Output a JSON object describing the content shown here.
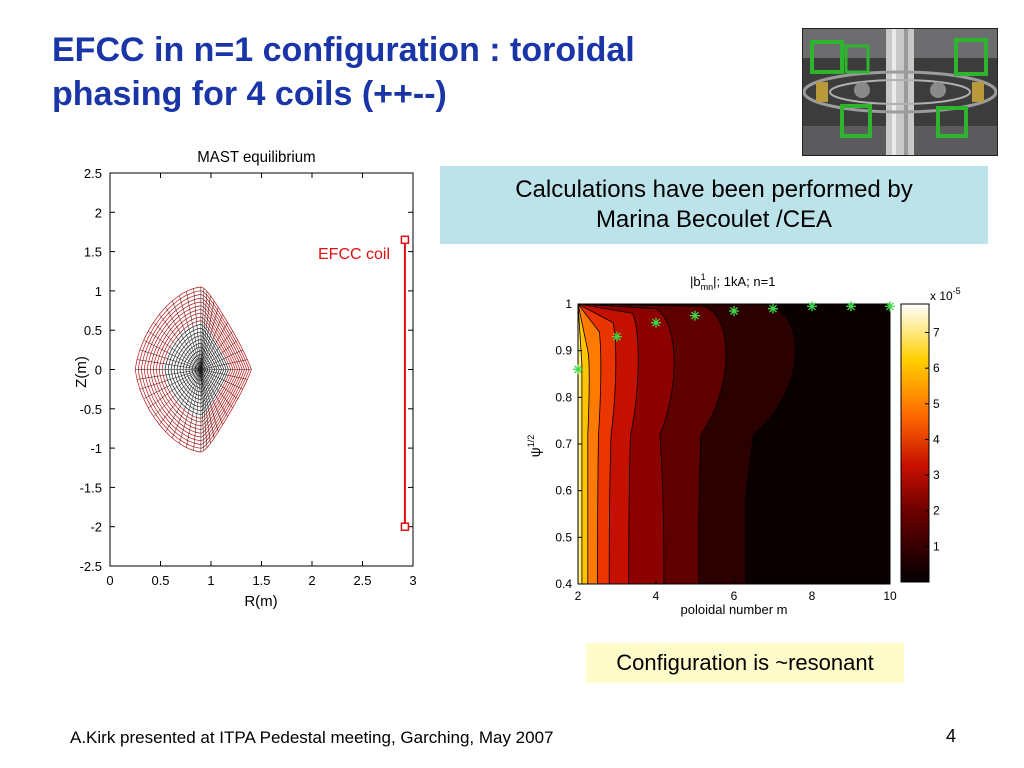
{
  "slide": {
    "title_line1": "EFCC in n=1 configuration : toroidal",
    "title_line2": "phasing for 4 coils (++--)",
    "callout_line1": "Calculations have been performed by",
    "callout_line2": "Marina Becoulet /CEA",
    "note": "Configuration is ~resonant",
    "footer": "A.Kirk presented at ITPA Pedestal meeting, Garching, May 2007",
    "page_number": "4"
  },
  "colors": {
    "title": "#1a35a8",
    "callout_bg": "#bce3ea",
    "note_bg": "#fffccc",
    "coil": "#e01010"
  },
  "photo": {
    "icon": "tokamak-vessel-photo-icon"
  },
  "chart_data": [
    {
      "type": "line",
      "title": "MAST equilibrium",
      "xlabel": "R(m)",
      "ylabel": "Z(m)",
      "xlim": [
        0,
        3
      ],
      "ylim": [
        -2.5,
        2.5
      ],
      "xticks": [
        "0",
        "0.5",
        "1",
        "1.5",
        "2",
        "2.5",
        "3"
      ],
      "yticks": [
        "2.5",
        "2",
        "1.5",
        "1",
        "0.5",
        "0",
        "-0.5",
        "-1",
        "-1.5",
        "-2",
        "-2.5"
      ],
      "annotation": "EFCC coil",
      "plasma_boundary": {
        "r_inner": 0.25,
        "r_outer": 1.4,
        "z_max": 1.05,
        "z_min": -1.05,
        "r_axis": 0.9
      },
      "efcc_coil": {
        "r": 2.92,
        "z_top": 1.65,
        "z_bottom": -2.0
      }
    },
    {
      "type": "heatmap",
      "title": "|b1mn|; 1kA; n=1",
      "title_base": "|b",
      "title_sup": "1",
      "title_sub": "mn",
      "title_rest": "|; 1kA; n=1",
      "xlabel": "poloidal number m",
      "ylabel": "ψ1/2",
      "ylabel_base": "ψ",
      "ylabel_sup": "1/2",
      "xlim": [
        2,
        10
      ],
      "ylim": [
        0.4,
        1.0
      ],
      "xticks": [
        "2",
        "4",
        "6",
        "8",
        "10"
      ],
      "yticks": [
        "1",
        "0.9",
        "0.8",
        "0.7",
        "0.6",
        "0.5",
        "0.4"
      ],
      "colorbar_label": "x 10",
      "colorbar_exp": "-5",
      "colorbar_ticks": [
        "7",
        "6",
        "5",
        "4",
        "3",
        "2",
        "1"
      ],
      "colorbar_range": [
        0,
        7.8
      ],
      "resonant_points": [
        {
          "m": 2,
          "psi": 0.86
        },
        {
          "m": 3,
          "psi": 0.93
        },
        {
          "m": 4,
          "psi": 0.96
        },
        {
          "m": 5,
          "psi": 0.975
        },
        {
          "m": 6,
          "psi": 0.985
        },
        {
          "m": 7,
          "psi": 0.99
        },
        {
          "m": 8,
          "psi": 0.995
        },
        {
          "m": 9,
          "psi": 0.995
        },
        {
          "m": 10,
          "psi": 0.995
        }
      ]
    }
  ]
}
